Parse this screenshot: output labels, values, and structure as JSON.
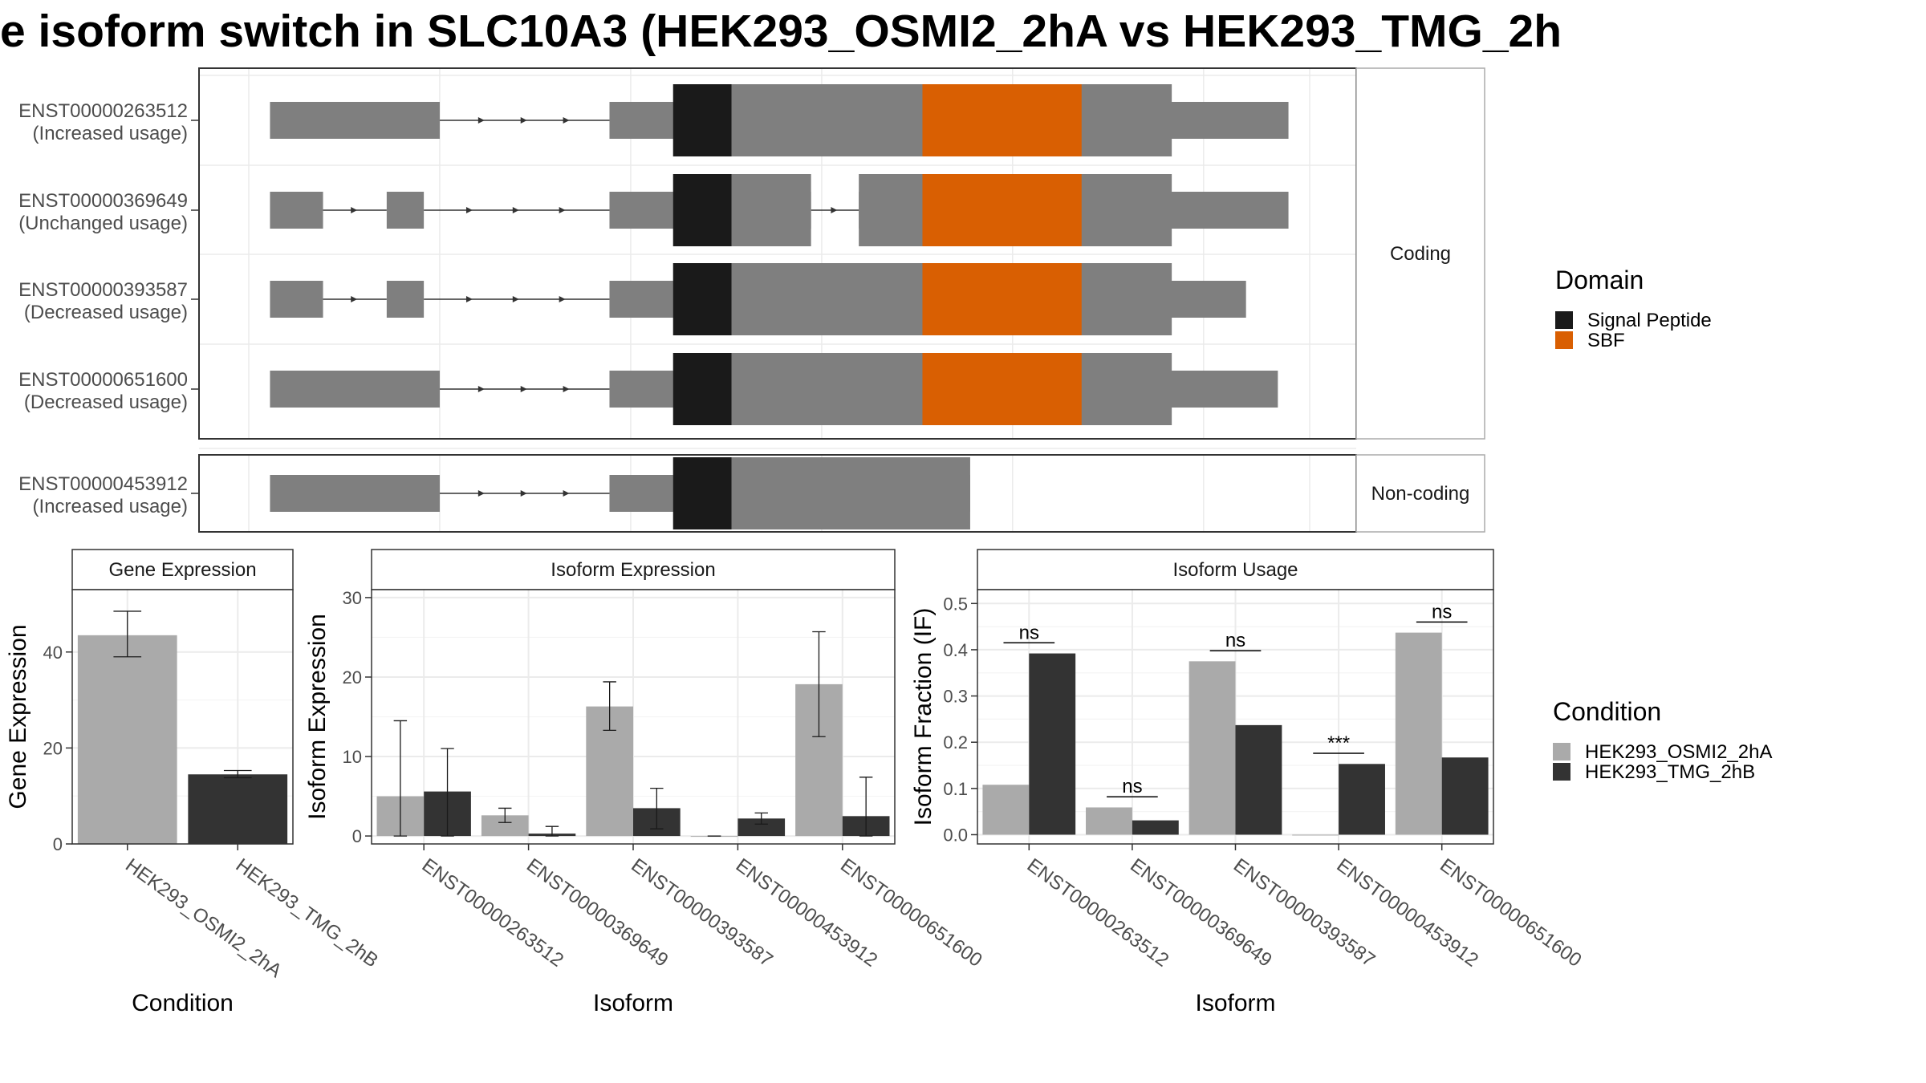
{
  "title": "e isoform switch in SLC10A3 (HEK293_OSMI2_2hA vs HEK293_TMG_2h",
  "colors": {
    "exon": "#7f7f7f",
    "signal_peptide": "#1a1a1a",
    "sbf": "#d95f02",
    "osmi": "#aaaaaa",
    "tmg": "#333333",
    "panel_border": "#333333",
    "strip_bg": "#ffffff",
    "grid": "#ebebeb"
  },
  "isoform_structure": {
    "panels": [
      {
        "label": "Coding",
        "isoforms": [
          {
            "id": "ENST00000263512",
            "usage": "(Increased usage)",
            "exons": [
              [
                0.02,
                0.18
              ],
              [
                0.34,
                0.98
              ]
            ],
            "domains": [
              [
                "signal_peptide",
                0.4,
                0.455
              ],
              [
                "sbf",
                0.635,
                0.785
              ]
            ],
            "cds": [
              0.4,
              0.87
            ]
          },
          {
            "id": "ENST00000369649",
            "usage": "(Unchanged usage)",
            "exons": [
              [
                0.02,
                0.07
              ],
              [
                0.13,
                0.165
              ],
              [
                0.34,
                0.53
              ],
              [
                0.575,
                0.98
              ]
            ],
            "domains": [
              [
                "signal_peptide",
                0.4,
                0.455
              ],
              [
                "sbf",
                0.635,
                0.785
              ]
            ],
            "cds": [
              0.4,
              0.87
            ]
          },
          {
            "id": "ENST00000393587",
            "usage": "(Decreased usage)",
            "exons": [
              [
                0.02,
                0.07
              ],
              [
                0.13,
                0.165
              ],
              [
                0.34,
                0.94
              ]
            ],
            "domains": [
              [
                "signal_peptide",
                0.4,
                0.455
              ],
              [
                "sbf",
                0.635,
                0.785
              ]
            ],
            "cds": [
              0.4,
              0.87
            ]
          },
          {
            "id": "ENST00000651600",
            "usage": "(Decreased usage)",
            "exons": [
              [
                0.02,
                0.18
              ],
              [
                0.34,
                0.97
              ]
            ],
            "domains": [
              [
                "signal_peptide",
                0.4,
                0.455
              ],
              [
                "sbf",
                0.635,
                0.785
              ]
            ],
            "cds": [
              0.4,
              0.87
            ]
          }
        ]
      },
      {
        "label": "Non-coding",
        "isoforms": [
          {
            "id": "ENST00000453912",
            "usage": "(Increased usage)",
            "exons": [
              [
                0.02,
                0.18
              ],
              [
                0.34,
                0.68
              ]
            ],
            "domains": [
              [
                "signal_peptide",
                0.4,
                0.455
              ]
            ],
            "cds": [
              0.4,
              0.68
            ]
          }
        ]
      }
    ]
  },
  "legends": {
    "domain": {
      "title": "Domain",
      "items": [
        {
          "label": "Signal Peptide",
          "color": "#1a1a1a"
        },
        {
          "label": "SBF",
          "color": "#d95f02"
        }
      ]
    },
    "condition": {
      "title": "Condition",
      "items": [
        {
          "label": "HEK293_OSMI2_2hA",
          "color": "#aaaaaa"
        },
        {
          "label": "HEK293_TMG_2hB",
          "color": "#333333"
        }
      ]
    }
  },
  "chart_data": [
    {
      "type": "bar",
      "strip": "Gene Expression",
      "xlabel": "Condition",
      "ylabel": "Gene Expression",
      "ylim": [
        0,
        53
      ],
      "yticks": [
        0,
        20,
        40
      ],
      "categories": [
        "HEK293_OSMI2_2hA",
        "HEK293_TMG_2hB"
      ],
      "values": [
        43.5,
        14.5
      ],
      "error": [
        [
          39,
          48.5
        ],
        [
          13.8,
          15.3
        ]
      ],
      "colors": [
        "#aaaaaa",
        "#333333"
      ]
    },
    {
      "type": "bar",
      "strip": "Isoform Expression",
      "xlabel": "Isoform",
      "ylabel": "Isoform Expression",
      "ylim": [
        -1,
        31
      ],
      "yticks": [
        0,
        10,
        20,
        30
      ],
      "categories": [
        "ENST00000263512",
        "ENST00000369649",
        "ENST00000393587",
        "ENST00000453912",
        "ENST00000651600"
      ],
      "series": [
        {
          "name": "HEK293_OSMI2_2hA",
          "values": [
            5.0,
            2.6,
            16.3,
            0.0,
            19.1
          ],
          "error": [
            [
              0,
              14.5
            ],
            [
              1.7,
              3.5
            ],
            [
              13.3,
              19.4
            ],
            [
              0,
              0
            ],
            [
              12.5,
              25.7
            ]
          ]
        },
        {
          "name": "HEK293_TMG_2hB",
          "values": [
            5.6,
            0.3,
            3.5,
            2.2,
            2.5
          ],
          "error": [
            [
              0,
              11.0
            ],
            [
              0,
              1.2
            ],
            [
              0.9,
              6.0
            ],
            [
              1.5,
              2.9
            ],
            [
              0,
              7.4
            ]
          ]
        }
      ]
    },
    {
      "type": "bar",
      "strip": "Isoform Usage",
      "xlabel": "Isoform",
      "ylabel": "Isoform Fraction (IF)",
      "ylim": [
        -0.02,
        0.53
      ],
      "yticks": [
        0.0,
        0.1,
        0.2,
        0.3,
        0.4,
        0.5
      ],
      "ytick_labels": [
        "0.0",
        "0.1",
        "0.2",
        "0.3",
        "0.4",
        "0.5"
      ],
      "categories": [
        "ENST00000263512",
        "ENST00000369649",
        "ENST00000393587",
        "ENST00000453912",
        "ENST00000651600"
      ],
      "series": [
        {
          "name": "HEK293_OSMI2_2hA",
          "values": [
            0.108,
            0.059,
            0.375,
            0.0,
            0.437
          ]
        },
        {
          "name": "HEK293_TMG_2hB",
          "values": [
            0.392,
            0.031,
            0.237,
            0.153,
            0.167
          ]
        }
      ],
      "annotations": [
        {
          "category": "ENST00000263512",
          "text": "ns",
          "y": 0.415
        },
        {
          "category": "ENST00000369649",
          "text": "ns",
          "y": 0.082
        },
        {
          "category": "ENST00000393587",
          "text": "ns",
          "y": 0.398
        },
        {
          "category": "ENST00000453912",
          "text": "***",
          "y": 0.176
        },
        {
          "category": "ENST00000651600",
          "text": "ns",
          "y": 0.46
        }
      ]
    }
  ]
}
